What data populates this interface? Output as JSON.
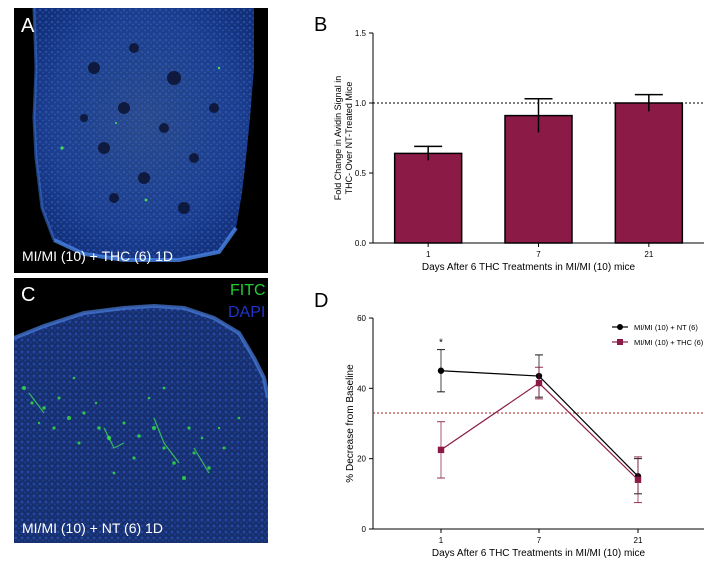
{
  "panels": {
    "a": {
      "letter": "A",
      "caption": "MI/MI (10) + THC (6) 1D"
    },
    "b": {
      "letter": "B"
    },
    "c": {
      "letter": "C",
      "caption": "MI/MI (10) + NT (6) 1D",
      "stain_fitc": "FITC",
      "stain_dapi": "DAPI"
    },
    "d": {
      "letter": "D"
    }
  },
  "colors": {
    "maroon": "#8b1a47",
    "black": "#000000",
    "fitc": "#22cc33",
    "dapi": "#2233cc",
    "threshold_red": "#aa2222"
  },
  "chart_data": [
    {
      "id": "B",
      "type": "bar",
      "title": "",
      "xlabel": "Days After 6 THC Treatments in MI/MI (10) mice",
      "ylabel_lines": [
        "Fold Change in Avidin Signal in",
        "THC- Over NT-Treated Mice"
      ],
      "categories": [
        "1",
        "7",
        "21"
      ],
      "values": [
        0.64,
        0.91,
        1.0
      ],
      "errors": [
        0.05,
        0.12,
        0.06
      ],
      "ylim": [
        0.0,
        1.5
      ],
      "yticks": [
        "0.0",
        "0.5",
        "1.0",
        "1.5"
      ],
      "reference_line": 1.0,
      "bar_color": "#8b1a47"
    },
    {
      "id": "D",
      "type": "line",
      "title": "",
      "xlabel": "Days After 6 THC Treatments in MI/MI (10) mice",
      "ylabel": "% Decrease from Baseline",
      "categories": [
        "1",
        "7",
        "21"
      ],
      "ylim": [
        0,
        60
      ],
      "yticks": [
        "0",
        "20",
        "40",
        "60"
      ],
      "reference_line": 33,
      "annotation": "*",
      "series": [
        {
          "name": "MI/MI (10) + NT (6)",
          "values": [
            45,
            43.5,
            15
          ],
          "errors": [
            6,
            6,
            5
          ],
          "color": "#000000",
          "marker": "circle"
        },
        {
          "name": "MI/MI (10) + THC (6)",
          "values": [
            22.5,
            41.5,
            14
          ],
          "errors": [
            8,
            4.5,
            6.5
          ],
          "color": "#8b1a47",
          "marker": "square"
        }
      ]
    }
  ]
}
